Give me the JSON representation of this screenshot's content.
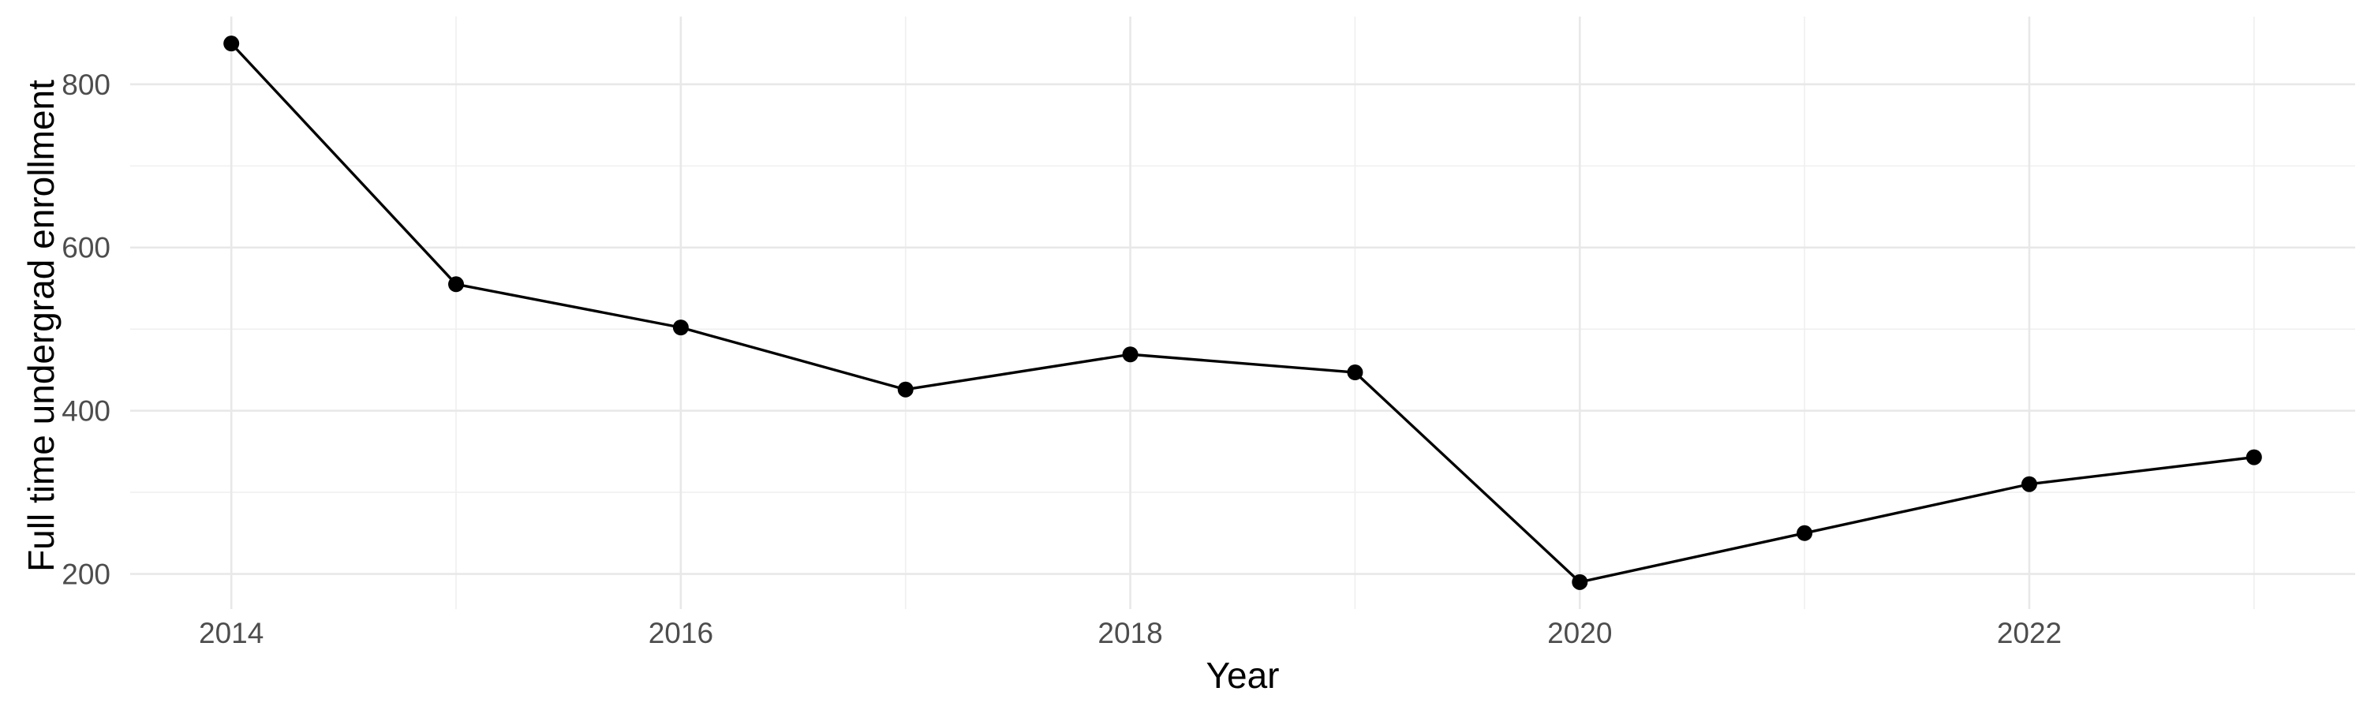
{
  "chart_data": {
    "type": "line",
    "title": "",
    "xlabel": "Year",
    "ylabel": "Full time undergrad enrollment",
    "x": [
      2014,
      2015,
      2016,
      2017,
      2018,
      2019,
      2020,
      2021,
      2022,
      2023
    ],
    "values": [
      850,
      555,
      502,
      426,
      469,
      447,
      190,
      250,
      310,
      343
    ],
    "series": [
      {
        "name": "Full time undergrad enrollment",
        "values": [
          850,
          555,
          502,
          426,
          469,
          447,
          190,
          250,
          310,
          343
        ]
      }
    ],
    "x_ticks": [
      2014,
      2016,
      2018,
      2020,
      2022
    ],
    "x_minor_ticks": [
      2015,
      2017,
      2019,
      2021,
      2023
    ],
    "y_ticks": [
      200,
      400,
      600,
      800
    ],
    "y_minor_ticks": [
      300,
      500,
      700
    ],
    "xlim": [
      2013.55,
      2023.45
    ],
    "ylim": [
      157,
      883
    ],
    "grid": "major-and-minor",
    "legend": false,
    "marker": "filled-circle",
    "colors": {
      "line": "#000000",
      "point": "#000000",
      "grid_major": "#e8e8e8",
      "grid_minor": "#f0f0f0",
      "tick_label": "#4d4d4d",
      "axis_title": "#000000",
      "background": "#ffffff"
    }
  }
}
